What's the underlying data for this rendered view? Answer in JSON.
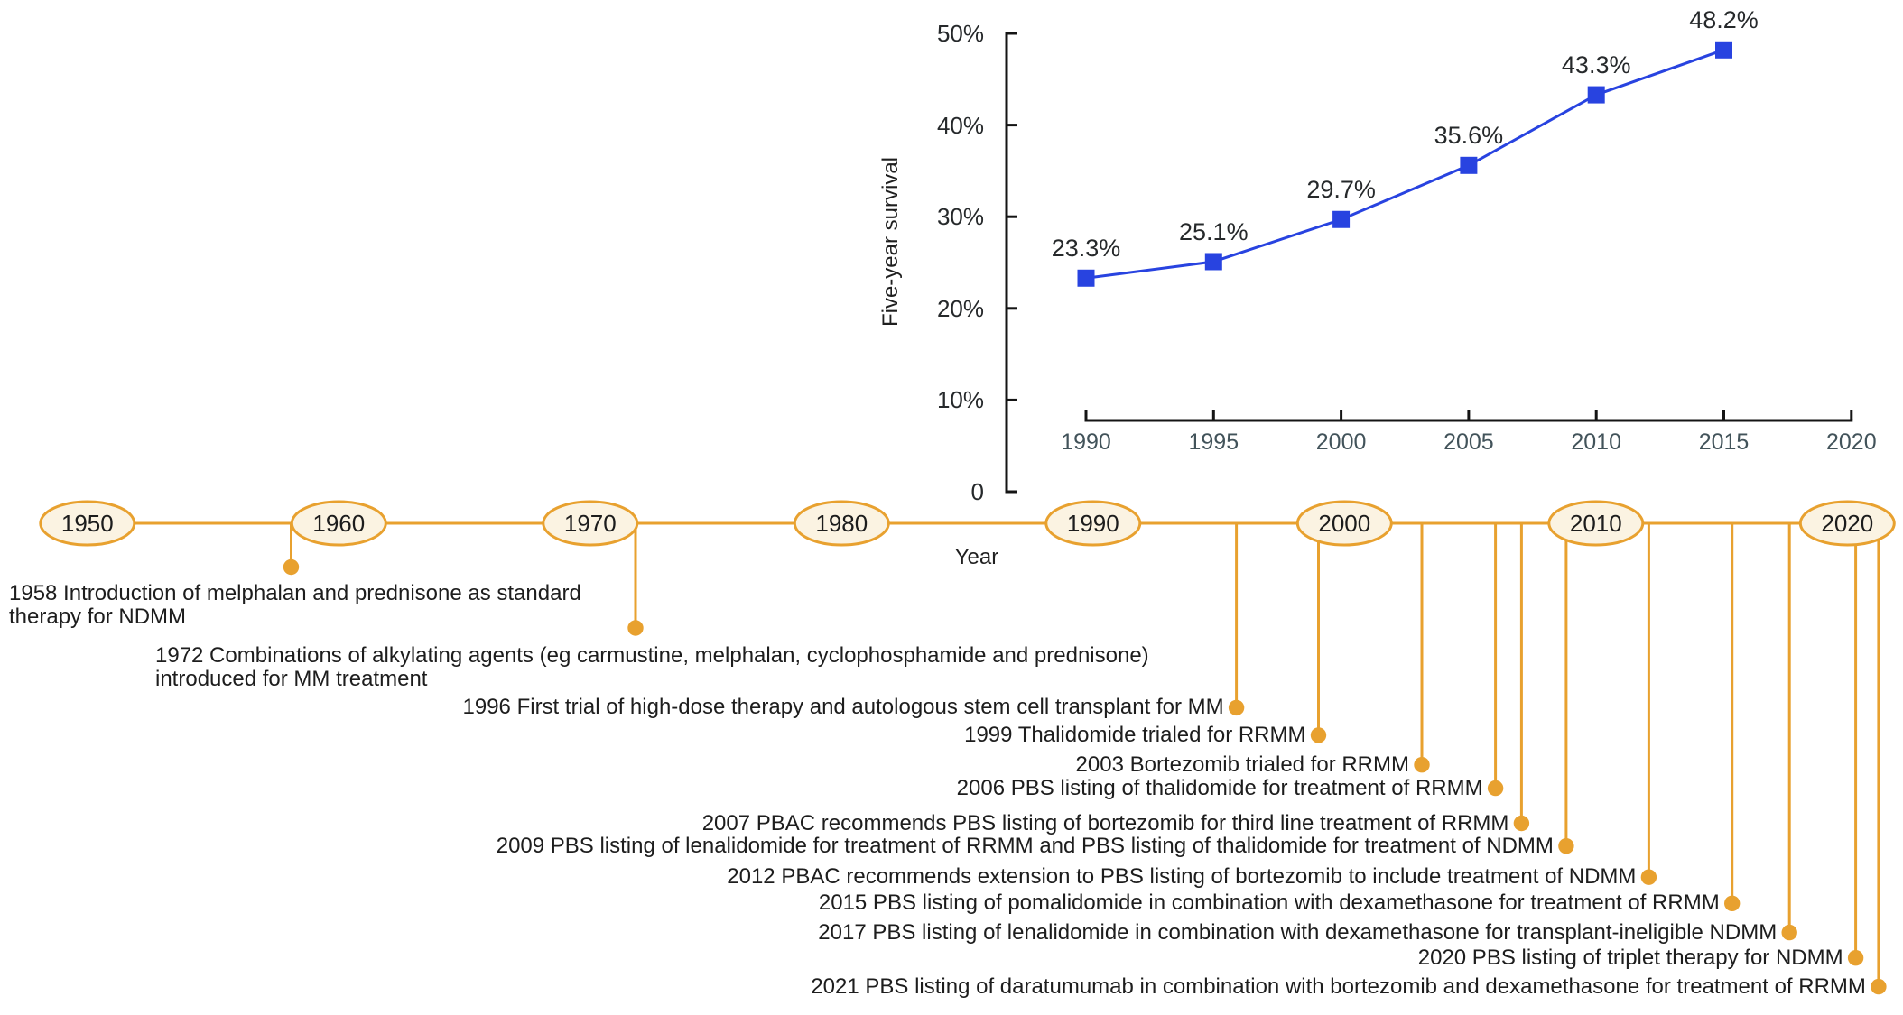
{
  "colors": {
    "background": "#ffffff",
    "timeline_orange": "#E8A12F",
    "oval_fill": "#FBF3E2",
    "series_blue": "#2843E0",
    "axis_black": "#141414",
    "text_dark": "#1d1d1d",
    "xtick_slate": "#42535a"
  },
  "chart_data": {
    "type": "line",
    "title": "",
    "x": [
      1990,
      1995,
      2000,
      2005,
      2010,
      2015
    ],
    "values": [
      23.3,
      25.1,
      29.7,
      35.6,
      43.3,
      48.2
    ],
    "point_labels": [
      "23.3%",
      "25.1%",
      "29.7%",
      "35.6%",
      "43.3%",
      "48.2%"
    ],
    "xlabel": "Year",
    "ylabel": "Five-year survival",
    "xlim": [
      1990,
      2020
    ],
    "ylim": [
      0,
      50
    ],
    "xtick_years": [
      1990,
      1995,
      2000,
      2005,
      2010,
      2015,
      2020
    ],
    "xtick_labels": [
      "1990",
      "1995",
      "2000",
      "2005",
      "2010",
      "2015",
      "2020"
    ],
    "ytick_values": [
      0,
      10,
      20,
      30,
      40,
      50
    ],
    "ytick_labels": [
      "0",
      "10%",
      "20%",
      "30%",
      "40%",
      "50%"
    ],
    "grid": false,
    "legend": null,
    "marker": "square",
    "series_color": "#2843E0"
  },
  "timeline": {
    "axis_label": "Year",
    "decades": [
      "1950",
      "1960",
      "1970",
      "1980",
      "1990",
      "2000",
      "2010",
      "2020"
    ],
    "events": [
      {
        "year": "1958",
        "lines": [
          "1958 Introduction of melphalan and prednisone as standard",
          "therapy for NDMM"
        ]
      },
      {
        "year": "1972",
        "lines": [
          "1972 Combinations of alkylating agents (eg carmustine, melphalan, cyclophosphamide and prednisone)",
          "introduced for MM treatment"
        ]
      },
      {
        "year": "1996",
        "lines": [
          "1996 First trial of high-dose therapy and autologous stem cell transplant for MM"
        ]
      },
      {
        "year": "1999",
        "lines": [
          "1999 Thalidomide trialed for RRMM"
        ]
      },
      {
        "year": "2003",
        "lines": [
          "2003 Bortezomib trialed for RRMM"
        ]
      },
      {
        "year": "2006",
        "lines": [
          "2006 PBS listing of thalidomide for treatment of RRMM"
        ]
      },
      {
        "year": "2007",
        "lines": [
          "2007 PBAC recommends PBS listing of bortezomib for third line treatment of RRMM"
        ]
      },
      {
        "year": "2009",
        "lines": [
          "2009 PBS listing of lenalidomide for treatment of RRMM and PBS listing of thalidomide for treatment of NDMM"
        ]
      },
      {
        "year": "2012",
        "lines": [
          "2012 PBAC recommends extension to PBS listing of bortezomib to include treatment of NDMM"
        ]
      },
      {
        "year": "2015",
        "lines": [
          "2015 PBS listing of pomalidomide in combination with dexamethasone for treatment of RRMM"
        ]
      },
      {
        "year": "2017",
        "lines": [
          "2017 PBS listing of lenalidomide in combination with dexamethasone for transplant-ineligible NDMM"
        ]
      },
      {
        "year": "2020",
        "lines": [
          "2020 PBS listing of triplet therapy for NDMM"
        ]
      },
      {
        "year": "2021",
        "lines": [
          "2021 PBS listing of daratumumab in combination with bortezomib and dexamethasone for treatment of RRMM"
        ]
      }
    ]
  }
}
